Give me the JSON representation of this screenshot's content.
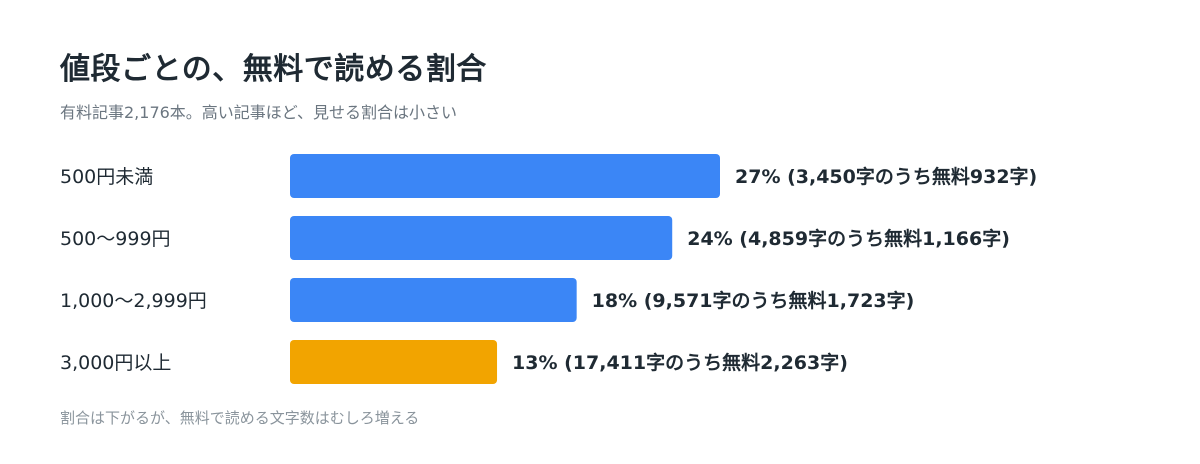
{
  "title": "値段ごとの、無料で読める割合",
  "subtitle": "有料記事2,176本。高い記事ほど、見せる割合は小さい",
  "footnote": "割合は下がるが、無料で読める文字数はむしろ増える",
  "colors": {
    "primary": "#3b86f6",
    "highlight": "#f2a400",
    "text": "#1f2a33",
    "muted": "#6b7680"
  },
  "chart_data": {
    "type": "bar",
    "orientation": "horizontal",
    "categories": [
      "500円未満",
      "500〜999円",
      "1,000〜2,999円",
      "3,000円以上"
    ],
    "values": [
      27,
      24,
      18,
      13
    ],
    "value_unit": "%",
    "value_labels": [
      "27%  (3,450字のうち無料932字)",
      "24%  (4,859字のうち無料1,166字)",
      "18%  (9,571字のうち無料1,723字)",
      "13%  (17,411字のうち無料2,263字)"
    ],
    "bar_colors": [
      "#3b86f6",
      "#3b86f6",
      "#3b86f6",
      "#f2a400"
    ],
    "xlim": [
      0,
      27
    ],
    "grid": false,
    "legend": "none"
  }
}
